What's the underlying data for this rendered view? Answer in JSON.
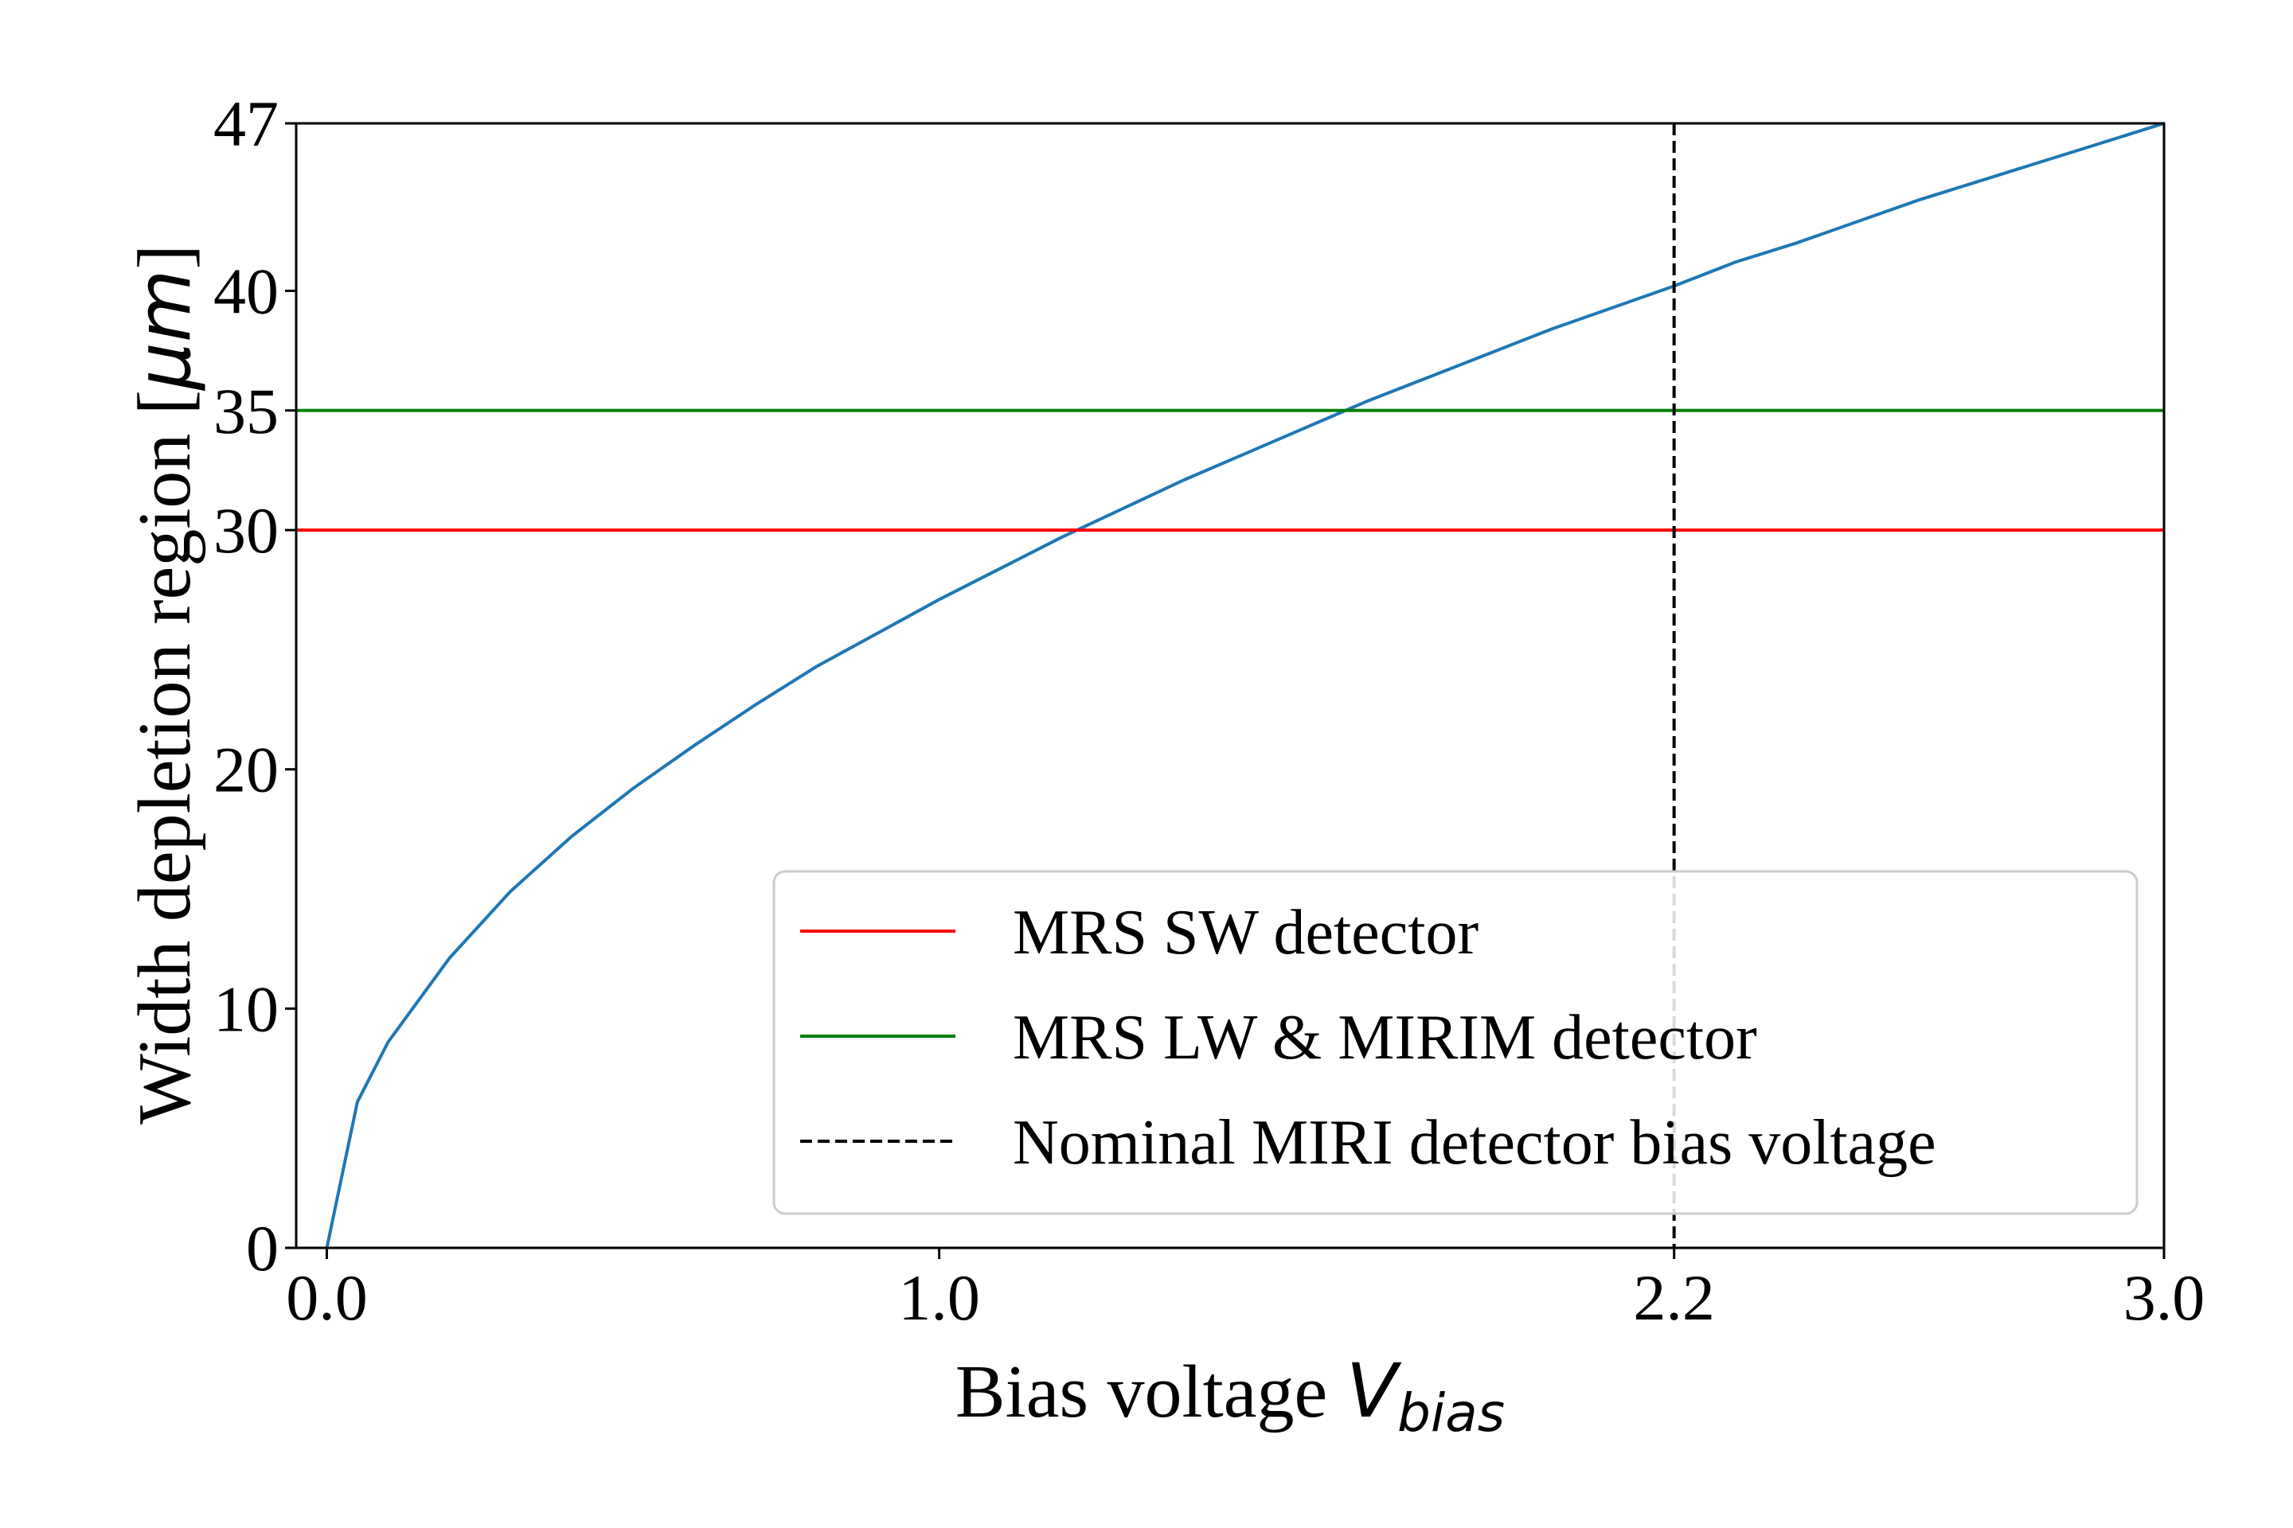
{
  "chart_data": {
    "type": "line",
    "title": "",
    "xlabel": "Bias voltage",
    "xlabel_symbol": "V",
    "xlabel_subscript": "bias",
    "ylabel": "Width depletion region [",
    "ylabel_unit": "μm",
    "ylabel_close": "]",
    "xlim": [
      -0.05,
      3.0
    ],
    "ylim": [
      0,
      47
    ],
    "xticks": [
      0.0,
      1.0,
      2.2,
      3.0
    ],
    "xtick_labels": [
      "0.0",
      "1.0",
      "2.2",
      "3.0"
    ],
    "yticks": [
      0,
      10,
      20,
      30,
      35,
      40,
      47
    ],
    "ytick_labels": [
      "0",
      "10",
      "20",
      "30",
      "35",
      "40",
      "47"
    ],
    "grid": false,
    "legend_position": "lower-right",
    "series": [
      {
        "kind": "curve",
        "color": "#1f77b4",
        "x": [
          0.0,
          0.05,
          0.1,
          0.2,
          0.3,
          0.4,
          0.5,
          0.6,
          0.7,
          0.8,
          0.9,
          1.0,
          1.1,
          1.2,
          1.3,
          1.4,
          1.5,
          1.6,
          1.7,
          1.8,
          1.9,
          2.0,
          2.1,
          2.2,
          2.3,
          2.4,
          2.5,
          2.6,
          2.7,
          2.8,
          2.9,
          3.0
        ],
        "y": [
          0.0,
          6.1,
          8.6,
          12.1,
          14.9,
          17.2,
          19.2,
          21.0,
          22.7,
          24.3,
          25.7,
          27.1,
          28.4,
          29.7,
          30.9,
          32.1,
          33.2,
          34.3,
          35.4,
          36.4,
          37.4,
          38.4,
          39.3,
          40.2,
          41.2,
          42.0,
          42.9,
          43.8,
          44.6,
          45.4,
          46.2,
          47.0
        ]
      },
      {
        "kind": "hline",
        "name": "MRS SW detector",
        "color": "#ff0000",
        "y": 30
      },
      {
        "kind": "hline",
        "name": "MRS LW & MIRIM detector",
        "color": "#008000",
        "y": 35
      },
      {
        "kind": "vline",
        "name": "Nominal MIRI detector bias voltage",
        "color": "#000000",
        "x": 2.2,
        "dashed": true
      }
    ]
  }
}
